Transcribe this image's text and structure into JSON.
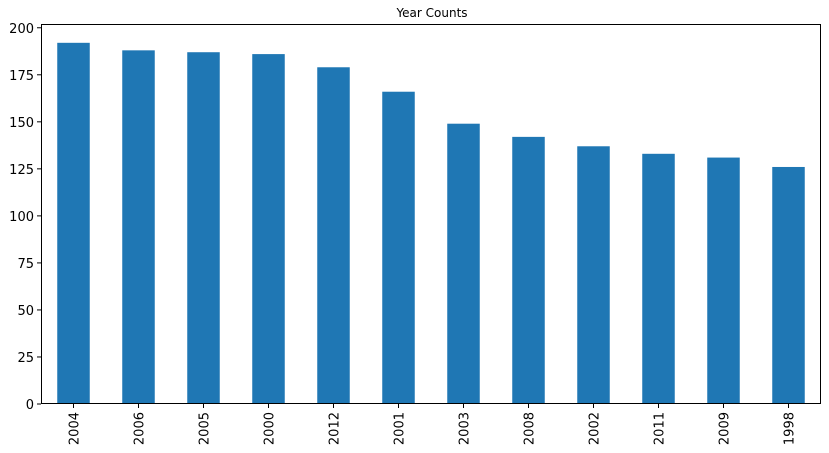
{
  "chart_data": {
    "type": "bar",
    "title": "Year Counts",
    "xlabel": "",
    "ylabel": "",
    "categories": [
      "2004",
      "2006",
      "2005",
      "2000",
      "2012",
      "2001",
      "2003",
      "2008",
      "2002",
      "2011",
      "2009",
      "1998"
    ],
    "values": [
      192,
      188,
      187,
      186,
      179,
      166,
      149,
      142,
      137,
      133,
      131,
      126
    ],
    "ylim": [
      0,
      202
    ],
    "yticks": [
      0,
      25,
      50,
      75,
      100,
      125,
      150,
      175,
      200
    ],
    "bar_color": "#1f77b4",
    "grid": false,
    "legend": "none"
  }
}
